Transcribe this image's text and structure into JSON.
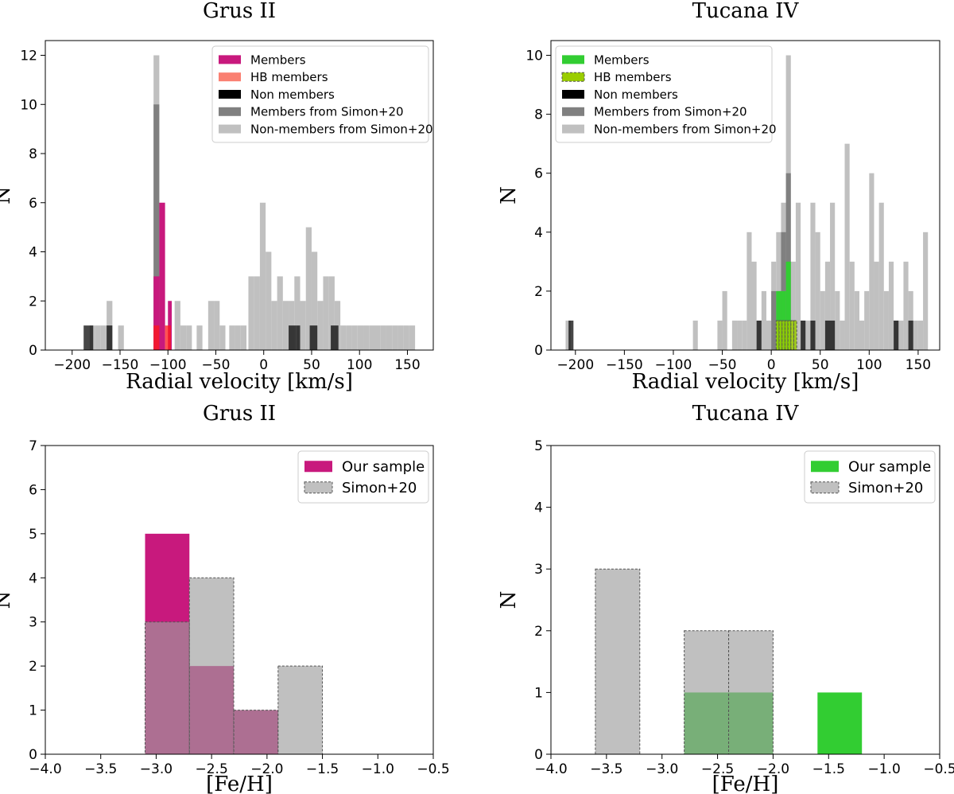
{
  "chart_data": [
    {
      "id": "gru-rv",
      "type": "histogram",
      "title": "Grus II",
      "xlabel": "Radial velocity [km/s]",
      "ylabel": "N",
      "xlim": [
        -228,
        177
      ],
      "ylim": [
        0,
        12.6
      ],
      "xticks": [
        -200,
        -150,
        -100,
        -50,
        0,
        50,
        100,
        150
      ],
      "xtick_labels": [
        "−200",
        "−150",
        "−100",
        "−50",
        "0",
        "50",
        "100",
        "150"
      ],
      "yticks": [
        0,
        2,
        4,
        6,
        8,
        10,
        12
      ],
      "ytick_labels": [
        "0",
        "2",
        "4",
        "6",
        "8",
        "10",
        "12"
      ],
      "grid": false,
      "legend_position": "top-right",
      "legend_font": 15,
      "legend": [
        {
          "label": "Members",
          "color": "#c8197d",
          "style": "solid"
        },
        {
          "label": "HB members",
          "color": "#fa8072",
          "style": "solid"
        },
        {
          "label": "Non members",
          "color": "#000000",
          "style": "solid"
        },
        {
          "label": "Members from Simon+20",
          "color": "#808080",
          "style": "solid"
        },
        {
          "label": "Non-members from Simon+20",
          "color": "#c0c0c0",
          "style": "solid"
        }
      ],
      "series": [
        {
          "name": "Non-members from Simon+20",
          "color": "#c0c0c0",
          "alpha": 1,
          "dashed": false,
          "bins": [
            [
              -182,
              -176,
              1
            ],
            [
              -176,
              -170,
              1
            ],
            [
              -170,
              -164,
              1
            ],
            [
              -164,
              -158,
              2
            ],
            [
              -152,
              -146,
              1
            ],
            [
              -115,
              -109,
              12
            ],
            [
              -93,
              -87,
              2
            ],
            [
              -87,
              -81,
              1
            ],
            [
              -81,
              -75,
              1
            ],
            [
              -70,
              -64,
              1
            ],
            [
              -58,
              -52,
              2
            ],
            [
              -52,
              -46,
              2
            ],
            [
              -46,
              -40,
              1
            ],
            [
              -36,
              -30,
              1
            ],
            [
              -30,
              -24,
              1
            ],
            [
              -24,
              -18,
              1
            ],
            [
              -16,
              -10,
              3
            ],
            [
              -10,
              -4,
              3
            ],
            [
              -4,
              2,
              6
            ],
            [
              2,
              8,
              4
            ],
            [
              8,
              14,
              2
            ],
            [
              14,
              20,
              3
            ],
            [
              20,
              26,
              2
            ],
            [
              26,
              32,
              2
            ],
            [
              32,
              38,
              3
            ],
            [
              38,
              44,
              2
            ],
            [
              44,
              50,
              5
            ],
            [
              50,
              56,
              4
            ],
            [
              56,
              62,
              2
            ],
            [
              62,
              68,
              3
            ],
            [
              68,
              74,
              3
            ],
            [
              74,
              80,
              2
            ],
            [
              80,
              86,
              1
            ],
            [
              86,
              92,
              1
            ],
            [
              92,
              98,
              1
            ],
            [
              98,
              104,
              1
            ],
            [
              104,
              110,
              1
            ],
            [
              110,
              116,
              1
            ],
            [
              116,
              122,
              1
            ],
            [
              122,
              128,
              1
            ],
            [
              128,
              134,
              1
            ],
            [
              134,
              140,
              1
            ],
            [
              140,
              146,
              1
            ],
            [
              146,
              152,
              1
            ],
            [
              152,
              158,
              1
            ]
          ]
        },
        {
          "name": "Members from Simon+20",
          "color": "#808080",
          "alpha": 1,
          "dashed": false,
          "bins": [
            [
              -115,
              -109,
              10
            ]
          ]
        },
        {
          "name": "Non members",
          "color": "#000000",
          "alpha": 0.72,
          "dashed": false,
          "bins": [
            [
              -188,
              -182,
              1
            ],
            [
              -182,
              -178,
              1
            ],
            [
              -164,
              -158,
              1
            ],
            [
              26,
              34,
              1
            ],
            [
              34,
              38,
              1
            ],
            [
              48,
              56,
              1
            ],
            [
              70,
              78,
              1
            ]
          ]
        },
        {
          "name": "Members",
          "color": "#c8197d",
          "alpha": 1,
          "dashed": false,
          "bins": [
            [
              -115,
              -109,
              3
            ],
            [
              -109,
              -103,
              6
            ],
            [
              -100,
              -96,
              2
            ]
          ]
        },
        {
          "name": "HB members",
          "color": "#ff1a1a",
          "alpha": 0.75,
          "dashed": false,
          "bins": [
            [
              -115,
              -109,
              1
            ],
            [
              -103,
              -97,
              1
            ]
          ]
        }
      ]
    },
    {
      "id": "tuc-rv",
      "type": "histogram",
      "title": "Tucana IV",
      "xlabel": "Radial velocity [km/s]",
      "ylabel": "N",
      "xlim": [
        -225,
        172
      ],
      "ylim": [
        0,
        10.5
      ],
      "xticks": [
        -200,
        -150,
        -100,
        -50,
        0,
        50,
        100,
        150
      ],
      "xtick_labels": [
        "−200",
        "−150",
        "−100",
        "−50",
        "0",
        "50",
        "100",
        "150"
      ],
      "yticks": [
        0,
        2,
        4,
        6,
        8,
        10
      ],
      "ytick_labels": [
        "0",
        "2",
        "4",
        "6",
        "8",
        "10"
      ],
      "grid": false,
      "legend_position": "top-left",
      "legend_font": 15,
      "legend": [
        {
          "label": "Members",
          "color": "#32cd32",
          "style": "solid"
        },
        {
          "label": "HB members",
          "color": "#9acd00",
          "style": "dashed"
        },
        {
          "label": "Non members",
          "color": "#000000",
          "style": "solid"
        },
        {
          "label": "Members from Simon+20",
          "color": "#808080",
          "style": "solid"
        },
        {
          "label": "Non-members from Simon+20",
          "color": "#c0c0c0",
          "style": "solid"
        }
      ],
      "series": [
        {
          "name": "Non-members from Simon+20",
          "color": "#c0c0c0",
          "alpha": 1,
          "dashed": false,
          "bins": [
            [
              -210,
              -205,
              1
            ],
            [
              -80,
              -75,
              1
            ],
            [
              -55,
              -50,
              1
            ],
            [
              -50,
              -45,
              2
            ],
            [
              -40,
              -35,
              1
            ],
            [
              -35,
              -30,
              1
            ],
            [
              -30,
              -25,
              1
            ],
            [
              -25,
              -20,
              4
            ],
            [
              -20,
              -15,
              3
            ],
            [
              -15,
              -10,
              1
            ],
            [
              -10,
              -5,
              2
            ],
            [
              -5,
              0,
              1
            ],
            [
              0,
              5,
              3
            ],
            [
              5,
              10,
              4
            ],
            [
              10,
              15,
              5
            ],
            [
              15,
              20,
              10
            ],
            [
              20,
              25,
              3
            ],
            [
              25,
              30,
              5
            ],
            [
              30,
              35,
              1
            ],
            [
              35,
              40,
              1
            ],
            [
              40,
              45,
              5
            ],
            [
              45,
              50,
              4
            ],
            [
              50,
              55,
              2
            ],
            [
              55,
              60,
              3
            ],
            [
              60,
              65,
              5
            ],
            [
              65,
              70,
              2
            ],
            [
              70,
              75,
              1
            ],
            [
              75,
              80,
              7
            ],
            [
              80,
              85,
              3
            ],
            [
              85,
              90,
              2
            ],
            [
              90,
              95,
              1
            ],
            [
              95,
              100,
              2
            ],
            [
              100,
              105,
              6
            ],
            [
              105,
              110,
              3
            ],
            [
              110,
              115,
              5
            ],
            [
              115,
              120,
              2
            ],
            [
              120,
              125,
              3
            ],
            [
              125,
              130,
              1
            ],
            [
              130,
              135,
              1
            ],
            [
              135,
              140,
              3
            ],
            [
              140,
              145,
              2
            ],
            [
              145,
              150,
              1
            ],
            [
              150,
              155,
              1
            ],
            [
              155,
              160,
              4
            ]
          ]
        },
        {
          "name": "Members from Simon+20",
          "color": "#808080",
          "alpha": 1,
          "dashed": false,
          "bins": [
            [
              0,
              5,
              2
            ],
            [
              5,
              10,
              2
            ],
            [
              10,
              15,
              4
            ],
            [
              15,
              20,
              6
            ]
          ]
        },
        {
          "name": "Non members",
          "color": "#000000",
          "alpha": 0.72,
          "dashed": false,
          "bins": [
            [
              -207,
              -202,
              1
            ],
            [
              -15,
              -10,
              1
            ],
            [
              30,
              35,
              1
            ],
            [
              40,
              45,
              1
            ],
            [
              55,
              65,
              1
            ],
            [
              125,
              130,
              1
            ],
            [
              140,
              145,
              1
            ]
          ]
        },
        {
          "name": "Members",
          "color": "#32cd32",
          "alpha": 1,
          "dashed": false,
          "bins": [
            [
              5,
              10,
              2
            ],
            [
              10,
              15,
              2
            ],
            [
              15,
              20,
              3
            ]
          ]
        },
        {
          "name": "HB members",
          "color": "#9acd00",
          "alpha": 0.85,
          "dashed": true,
          "bins": [
            [
              5,
              8,
              1
            ],
            [
              8,
              11,
              1
            ],
            [
              11,
              14,
              1
            ],
            [
              14,
              17,
              1
            ],
            [
              17,
              20,
              1
            ],
            [
              20,
              23,
              1
            ],
            [
              23,
              26,
              1
            ]
          ]
        }
      ]
    },
    {
      "id": "gru-feh",
      "type": "histogram",
      "title": "Grus II",
      "xlabel": "[Fe/H]",
      "ylabel": "N",
      "xlim": [
        -4.0,
        -0.5
      ],
      "ylim": [
        0,
        7
      ],
      "xticks": [
        -4.0,
        -3.5,
        -3.0,
        -2.5,
        -2.0,
        -1.5,
        -1.0,
        -0.5
      ],
      "xtick_labels": [
        "−4.0",
        "−3.5",
        "−3.0",
        "−2.5",
        "−2.0",
        "−1.5",
        "−1.0",
        "−0.5"
      ],
      "yticks": [
        0,
        1,
        2,
        3,
        4,
        5,
        6,
        7
      ],
      "ytick_labels": [
        "0",
        "1",
        "2",
        "3",
        "4",
        "5",
        "6",
        "7"
      ],
      "grid": false,
      "legend_position": "top-right",
      "legend_font": 18,
      "legend": [
        {
          "label": "Our sample",
          "color": "#c8197d",
          "style": "solid"
        },
        {
          "label": "Simon+20",
          "color": "#c0c0c0",
          "style": "dashed"
        }
      ],
      "series": [
        {
          "name": "Our sample",
          "color": "#c8197d",
          "alpha": 1,
          "dashed": false,
          "bins": [
            [
              -3.1,
              -2.7,
              5
            ],
            [
              -2.7,
              -2.3,
              2
            ],
            [
              -2.3,
              -1.9,
              1
            ]
          ]
        },
        {
          "name": "Simon+20",
          "color": "#9e9e9e",
          "alpha": 0.65,
          "dashed": true,
          "bins": [
            [
              -3.1,
              -2.7,
              3
            ],
            [
              -2.7,
              -2.3,
              4
            ],
            [
              -2.3,
              -1.9,
              1
            ],
            [
              -1.9,
              -1.5,
              2
            ]
          ]
        }
      ]
    },
    {
      "id": "tuc-feh",
      "type": "histogram",
      "title": "Tucana IV",
      "xlabel": "[Fe/H]",
      "ylabel": "N",
      "xlim": [
        -4.0,
        -0.5
      ],
      "ylim": [
        0,
        5
      ],
      "xticks": [
        -4.0,
        -3.5,
        -3.0,
        -2.5,
        -2.0,
        -1.5,
        -1.0,
        -0.5
      ],
      "xtick_labels": [
        "−4.0",
        "−3.5",
        "−3.0",
        "−2.5",
        "−2.0",
        "−1.5",
        "−1.0",
        "−0.5"
      ],
      "yticks": [
        0,
        1,
        2,
        3,
        4,
        5
      ],
      "ytick_labels": [
        "0",
        "1",
        "2",
        "3",
        "4",
        "5"
      ],
      "grid": false,
      "legend_position": "top-right",
      "legend_font": 18,
      "legend": [
        {
          "label": "Our sample",
          "color": "#32cd32",
          "style": "solid"
        },
        {
          "label": "Simon+20",
          "color": "#c0c0c0",
          "style": "dashed"
        }
      ],
      "series": [
        {
          "name": "Our sample",
          "color": "#32cd32",
          "alpha": 1,
          "dashed": false,
          "bins": [
            [
              -2.8,
              -2.4,
              1
            ],
            [
              -2.4,
              -2.0,
              1
            ],
            [
              -1.6,
              -1.2,
              1
            ]
          ]
        },
        {
          "name": "Simon+20",
          "color": "#9e9e9e",
          "alpha": 0.65,
          "dashed": true,
          "bins": [
            [
              -3.6,
              -3.2,
              3
            ],
            [
              -2.8,
              -2.4,
              2
            ],
            [
              -2.4,
              -2.0,
              2
            ]
          ]
        }
      ]
    }
  ]
}
